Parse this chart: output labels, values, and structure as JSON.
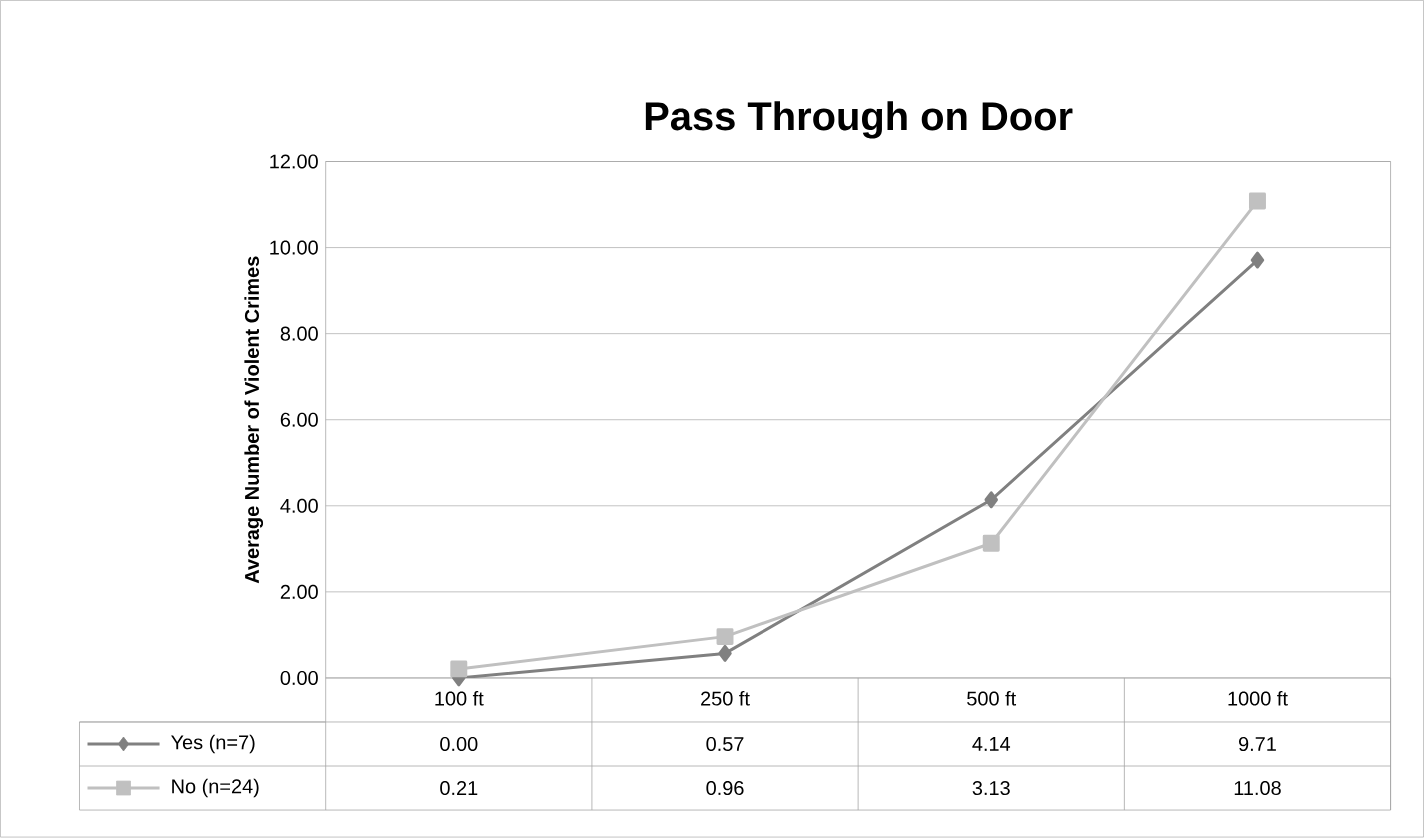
{
  "chart_data": {
    "type": "line",
    "title": "Pass Through on Door",
    "ylabel": "Average Number of Violent Crimes",
    "categories": [
      "100 ft",
      "250 ft",
      "500 ft",
      "1000 ft"
    ],
    "series": [
      {
        "name": "Yes (n=7)",
        "color": "#808080",
        "marker": "diamond",
        "values": [
          0.0,
          0.57,
          4.14,
          9.71
        ],
        "value_labels": [
          "0.00",
          "0.57",
          "4.14",
          "9.71"
        ]
      },
      {
        "name": "No (n=24)",
        "color": "#c0c0c0",
        "marker": "square",
        "values": [
          0.21,
          0.96,
          3.13,
          11.08
        ],
        "value_labels": [
          "0.21",
          "0.96",
          "3.13",
          "11.08"
        ]
      }
    ],
    "ylim": [
      0,
      12
    ],
    "yticks": [
      {
        "value": 0,
        "label": "0.00"
      },
      {
        "value": 2,
        "label": "2.00"
      },
      {
        "value": 4,
        "label": "4.00"
      },
      {
        "value": 6,
        "label": "6.00"
      },
      {
        "value": 8,
        "label": "8.00"
      },
      {
        "value": 10,
        "label": "10.00"
      },
      {
        "value": 12,
        "label": "12.00"
      }
    ],
    "grid": "y",
    "legend": "bottom",
    "line_style": "solid"
  }
}
